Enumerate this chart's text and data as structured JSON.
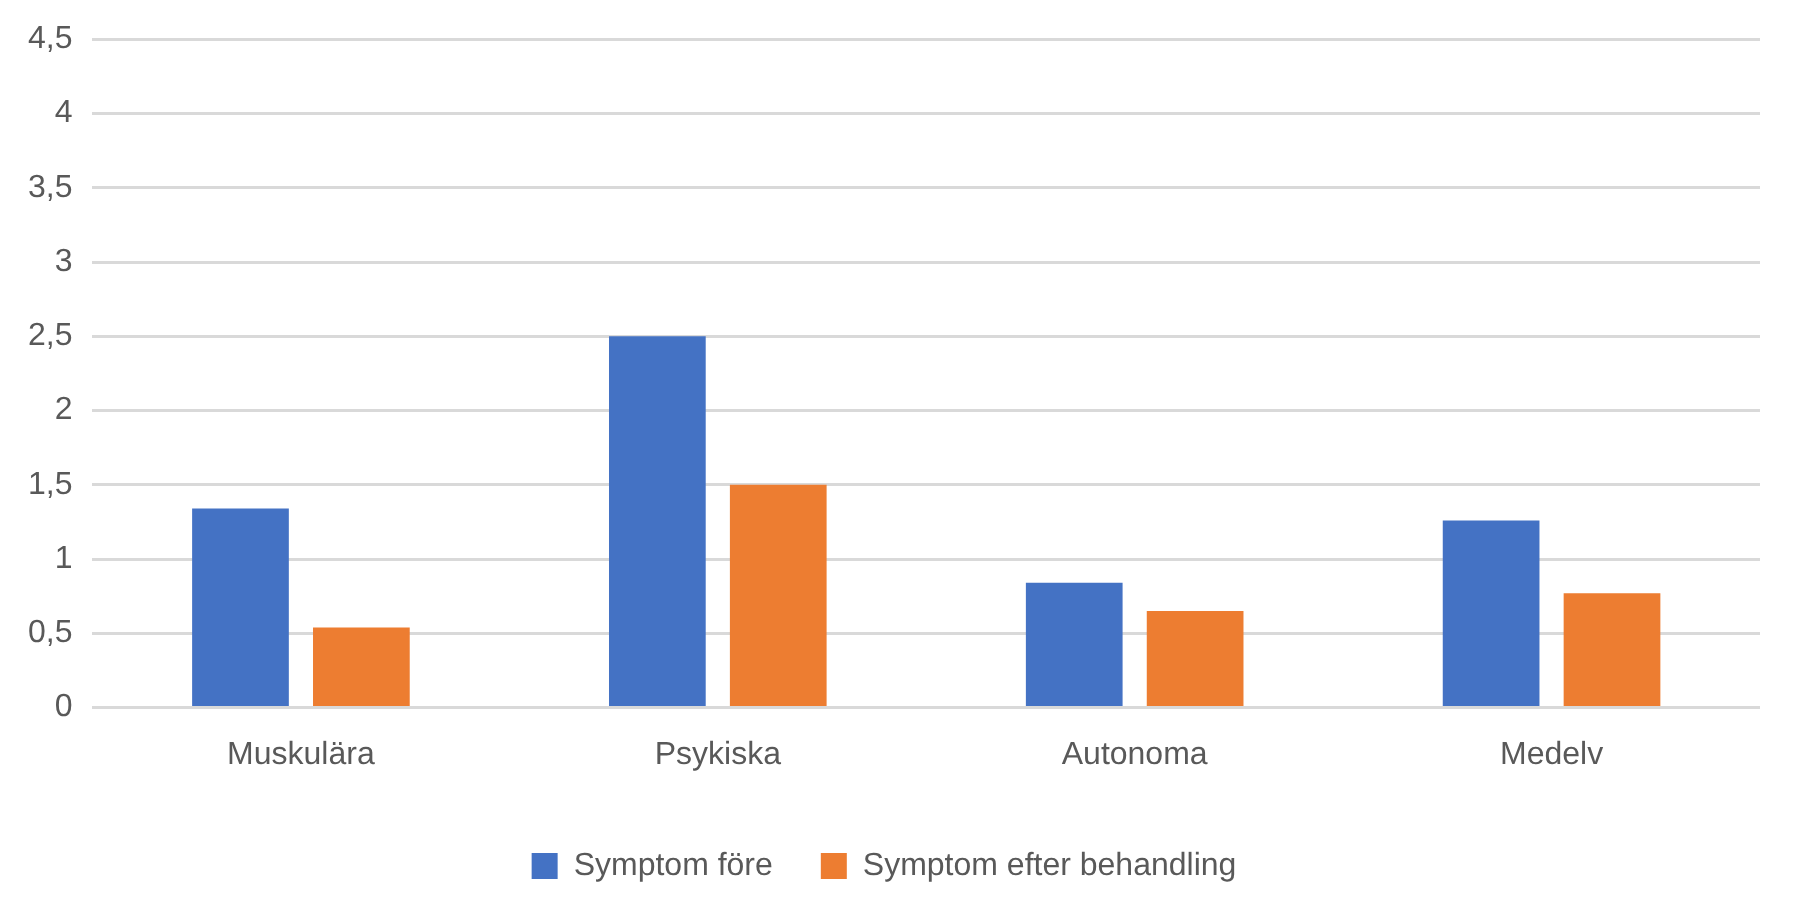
{
  "chart_data": {
    "type": "bar",
    "categories": [
      "Muskulära",
      "Psykiska",
      "Autonoma",
      "Medelv"
    ],
    "series": [
      {
        "name": "Symptom före",
        "color": "#4472c4",
        "values": [
          1.34,
          2.5,
          0.84,
          1.26
        ]
      },
      {
        "name": "Symptom efter behandling",
        "color": "#ed7d31",
        "values": [
          0.54,
          1.5,
          0.65,
          0.77
        ]
      }
    ],
    "ylim": [
      0,
      4.5
    ],
    "yticks": [
      0,
      {
        "value": 0.5,
        "label": "0,5"
      },
      1,
      {
        "value": 1.5,
        "label": "1,5"
      },
      2,
      {
        "value": 2.5,
        "label": "2,5"
      },
      3,
      {
        "value": 3.5,
        "label": "3,5"
      },
      4,
      {
        "value": 4.5,
        "label": "4,5"
      }
    ],
    "grid": "y",
    "legend": "bottom"
  }
}
